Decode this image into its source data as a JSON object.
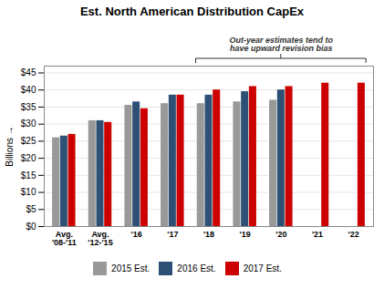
{
  "chart_data": {
    "type": "bar",
    "title": "Est. North American Distribution CapEx",
    "ylabel": "Billions",
    "annotation": "Out-year estimates tend to\nhave upward revision bias",
    "categories": [
      "Avg.\n'08-'11",
      "Avg.\n'12-'15",
      "'16",
      "'17",
      "'18",
      "'19",
      "'20",
      "'21",
      "'22"
    ],
    "series": [
      {
        "name": "2015 Est.",
        "color": "#999999",
        "values": [
          26,
          31,
          35.5,
          36,
          36,
          36.5,
          37,
          null,
          null
        ]
      },
      {
        "name": "2016 Est.",
        "color": "#2e5075",
        "values": [
          26.5,
          31,
          36.5,
          38.5,
          38.5,
          39.5,
          40,
          null,
          null
        ]
      },
      {
        "name": "2017 Est.",
        "color": "#cc0000",
        "values": [
          27,
          30.5,
          34.5,
          38.5,
          40,
          41,
          41,
          42,
          42
        ]
      }
    ],
    "ylim": [
      0,
      47
    ],
    "yticks": [
      {
        "value": 0,
        "label": "$0"
      },
      {
        "value": 5,
        "label": "$5"
      },
      {
        "value": 10,
        "label": "$10"
      },
      {
        "value": 15,
        "label": "$15"
      },
      {
        "value": 20,
        "label": "$20"
      },
      {
        "value": 25,
        "label": "$25"
      },
      {
        "value": 30,
        "label": "$30"
      },
      {
        "value": 35,
        "label": "$35"
      },
      {
        "value": 40,
        "label": "$40"
      },
      {
        "value": 45,
        "label": "$45"
      }
    ],
    "grid": true,
    "legend": "bottom"
  }
}
